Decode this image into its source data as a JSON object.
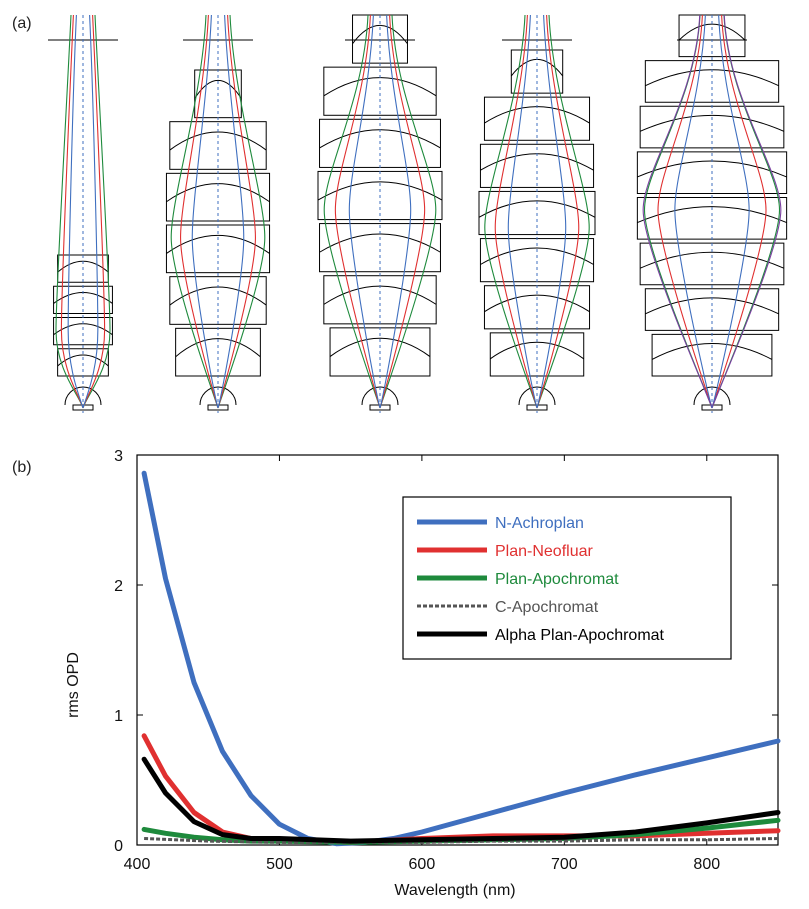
{
  "panel_a": {
    "label": "(a)",
    "objective_count": 5
  },
  "chart_data": {
    "type": "line",
    "panel_label": "(b)",
    "xlabel": "Wavelength (nm)",
    "ylabel": "rms OPD",
    "xlim": [
      400,
      850
    ],
    "ylim": [
      0,
      3
    ],
    "xticks": [
      400,
      500,
      600,
      700,
      800
    ],
    "yticks": [
      0,
      1,
      2,
      3
    ],
    "grid": false,
    "legend_position": "top-right",
    "series": [
      {
        "name": "N-Achroplan",
        "color": "#3f6fbf",
        "style": "solid",
        "x": [
          405,
          420,
          440,
          460,
          480,
          500,
          520,
          540,
          560,
          580,
          600,
          650,
          700,
          750,
          800,
          850
        ],
        "y": [
          2.86,
          2.05,
          1.25,
          0.72,
          0.38,
          0.16,
          0.05,
          0.01,
          0.02,
          0.05,
          0.1,
          0.25,
          0.4,
          0.54,
          0.67,
          0.8
        ]
      },
      {
        "name": "Plan-Neofluar",
        "color": "#e03030",
        "style": "solid",
        "x": [
          405,
          420,
          440,
          460,
          480,
          500,
          550,
          600,
          650,
          700,
          750,
          800,
          850
        ],
        "y": [
          0.84,
          0.53,
          0.25,
          0.1,
          0.05,
          0.04,
          0.02,
          0.05,
          0.07,
          0.07,
          0.07,
          0.09,
          0.11
        ]
      },
      {
        "name": "Plan-Apochromat",
        "color": "#1e8a3c",
        "style": "solid",
        "x": [
          405,
          420,
          440,
          460,
          480,
          500,
          550,
          600,
          650,
          700,
          750,
          800,
          850
        ],
        "y": [
          0.12,
          0.09,
          0.06,
          0.04,
          0.03,
          0.03,
          0.02,
          0.03,
          0.04,
          0.05,
          0.08,
          0.13,
          0.19
        ]
      },
      {
        "name": "C-Apochromat",
        "color": "#555555",
        "style": "dashed",
        "x": [
          405,
          450,
          500,
          550,
          600,
          650,
          700,
          750,
          800,
          850
        ],
        "y": [
          0.05,
          0.03,
          0.02,
          0.02,
          0.02,
          0.03,
          0.03,
          0.04,
          0.04,
          0.05
        ]
      },
      {
        "name": "Alpha Plan-Apochromat",
        "color": "#000000",
        "style": "solid",
        "x": [
          405,
          420,
          440,
          460,
          480,
          500,
          550,
          600,
          650,
          700,
          750,
          800,
          850
        ],
        "y": [
          0.66,
          0.4,
          0.18,
          0.08,
          0.05,
          0.05,
          0.03,
          0.04,
          0.05,
          0.06,
          0.1,
          0.17,
          0.25
        ]
      }
    ]
  }
}
